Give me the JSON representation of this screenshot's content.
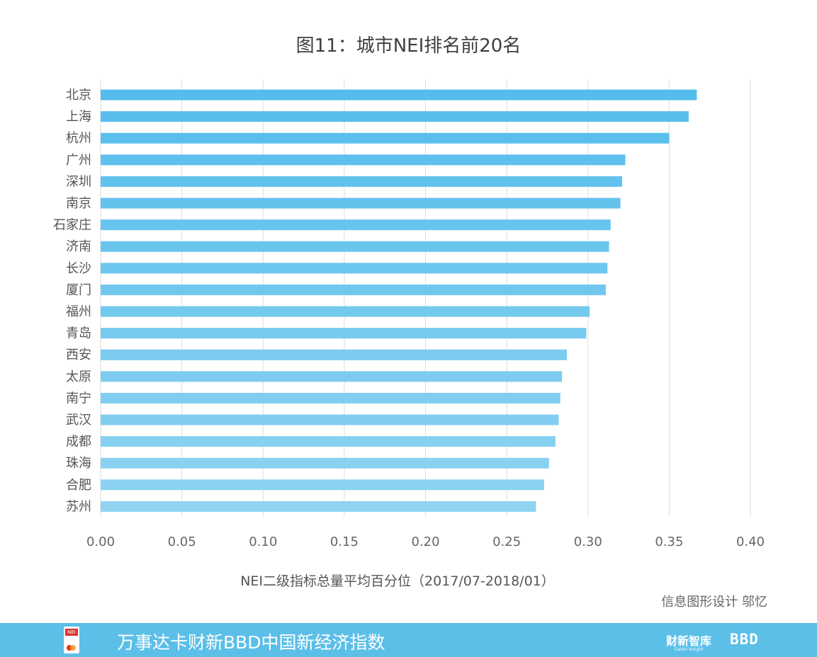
{
  "title": "图11：城市NEI排名前20名",
  "credit": "信息图形设计 邬忆",
  "footer": {
    "logo_text": "NEI",
    "text": "万事达卡财新BBD中国新经济指数",
    "brand1": "财新智库",
    "brand1_sub": "Caixin Insight",
    "brand2": "BBD"
  },
  "colors": {
    "bar_top": "#55bdec",
    "bar_bottom": "#8fd3f1",
    "grid": "#dddddd",
    "footer_bg": "#5bbfe8"
  },
  "chart_data": {
    "type": "bar",
    "orientation": "horizontal",
    "title": "图11：城市NEI排名前20名",
    "xlabel": "NEI二级指标总量平均百分位（2017/07-2018/01）",
    "ylabel": "",
    "xlim": [
      0,
      0.4
    ],
    "xticks": [
      "0.00",
      "0.05",
      "0.10",
      "0.15",
      "0.20",
      "0.25",
      "0.30",
      "0.35",
      "0.40"
    ],
    "grid": true,
    "categories": [
      "北京",
      "上海",
      "杭州",
      "广州",
      "深圳",
      "南京",
      "石家庄",
      "济南",
      "长沙",
      "厦门",
      "福州",
      "青岛",
      "西安",
      "太原",
      "南宁",
      "武汉",
      "成都",
      "珠海",
      "合肥",
      "苏州"
    ],
    "values": [
      0.367,
      0.362,
      0.35,
      0.323,
      0.321,
      0.32,
      0.314,
      0.313,
      0.312,
      0.311,
      0.301,
      0.299,
      0.287,
      0.284,
      0.283,
      0.282,
      0.28,
      0.276,
      0.273,
      0.268
    ]
  }
}
